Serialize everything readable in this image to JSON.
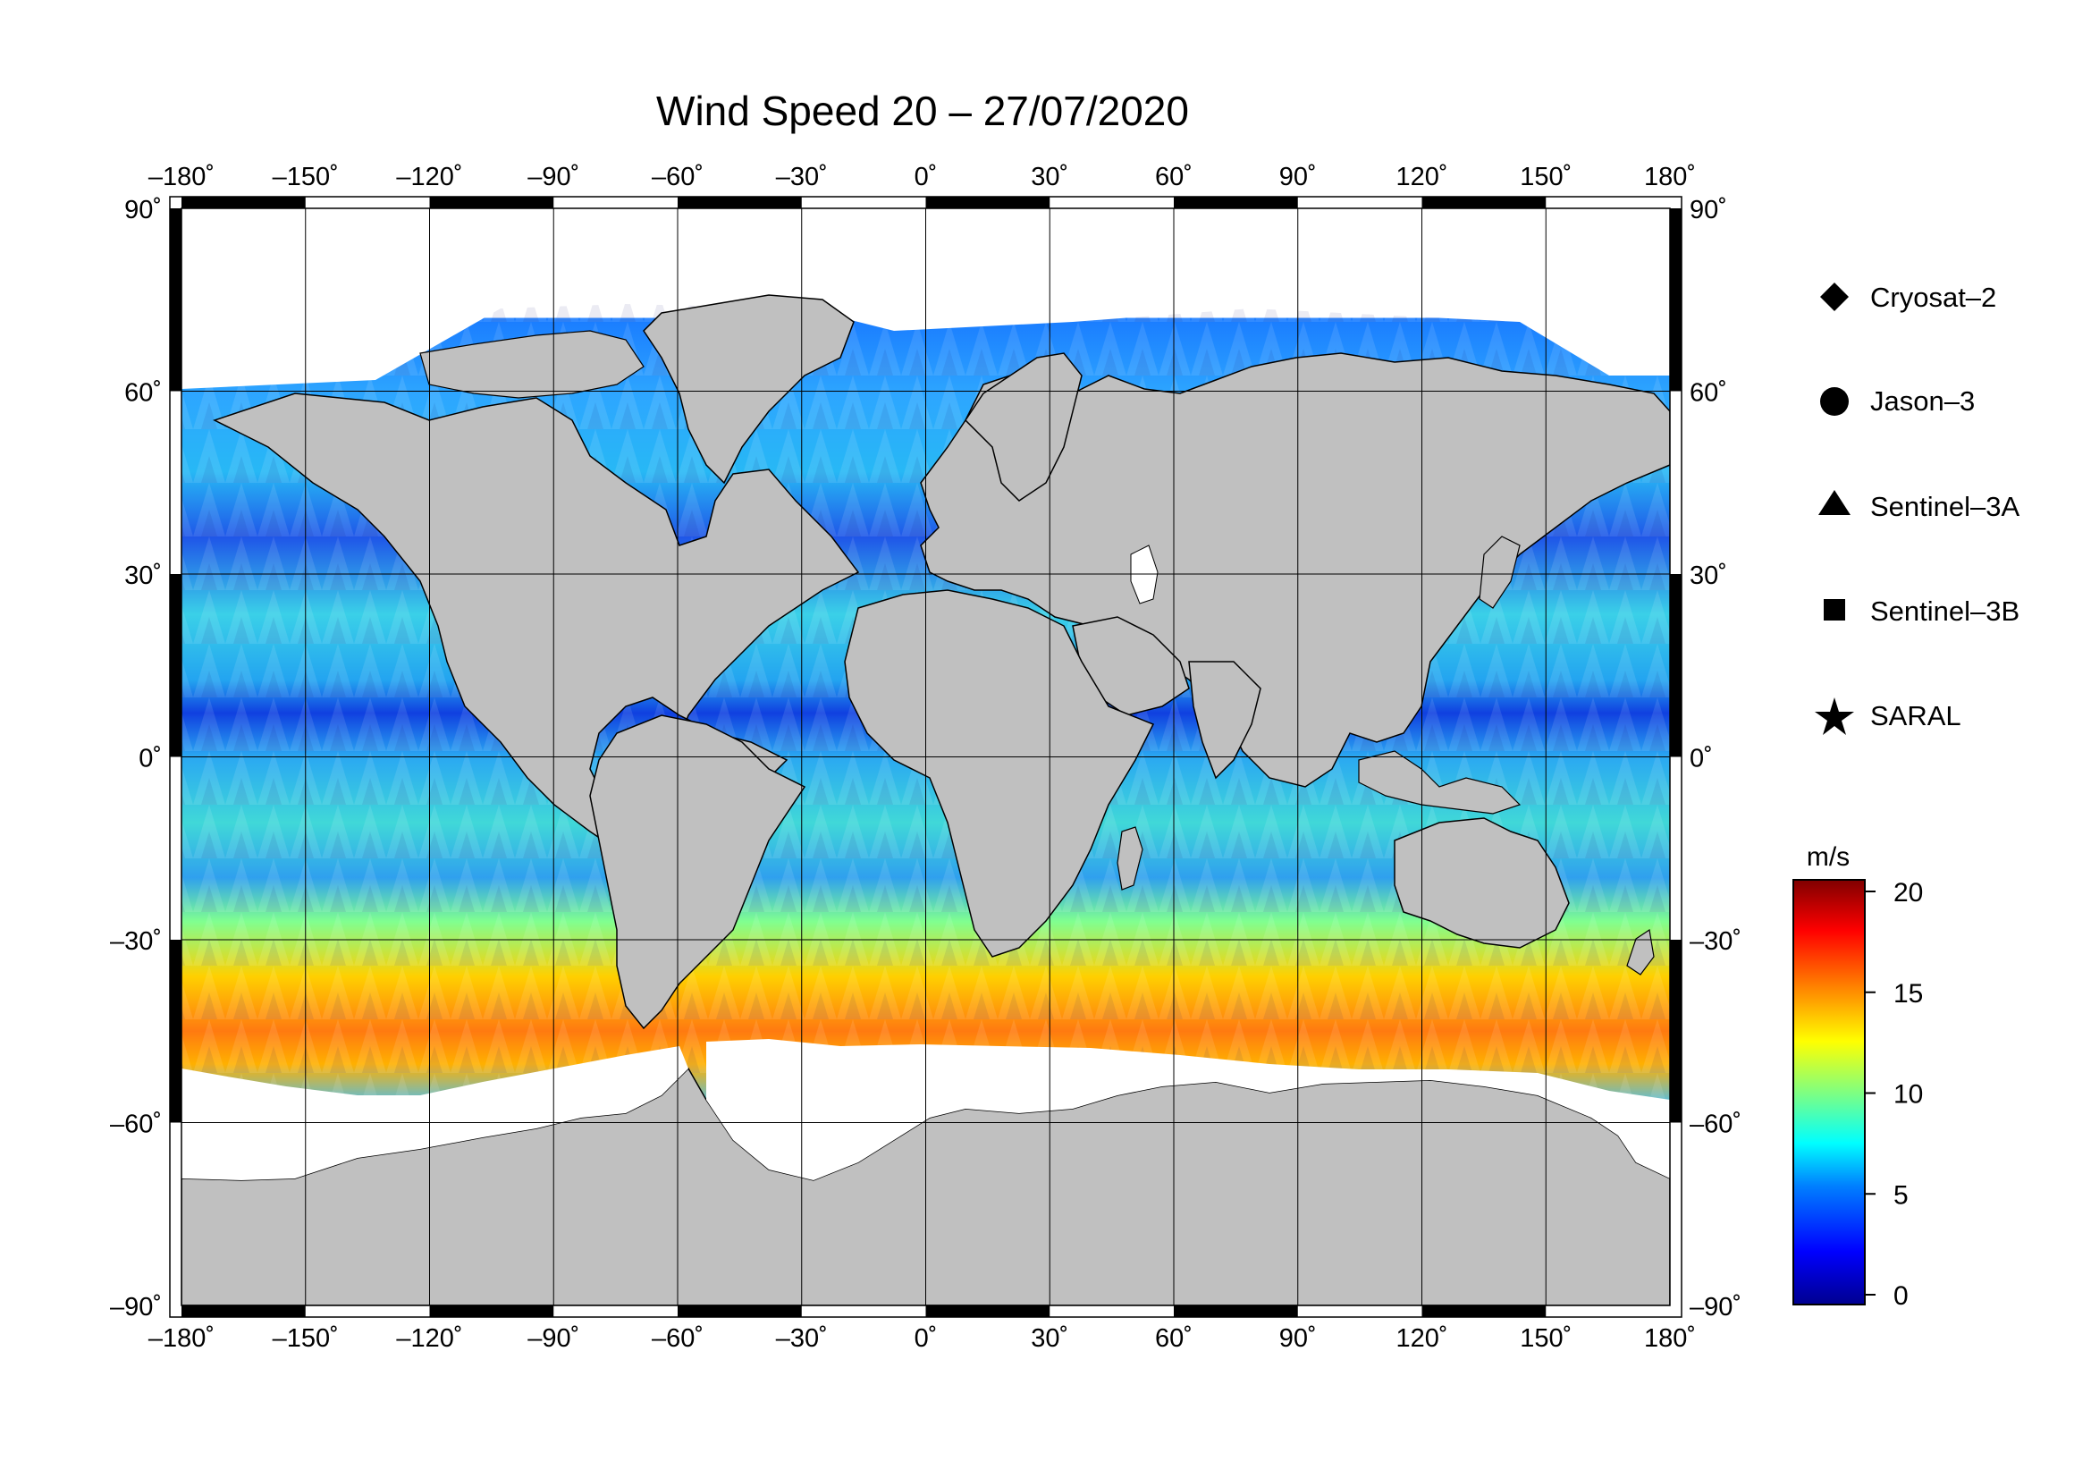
{
  "title": "Wind Speed 20 – 27/07/2020",
  "longitude_ticks": [
    "–180˚",
    "–150˚",
    "–120˚",
    "–90˚",
    "–60˚",
    "–30˚",
    "0˚",
    "30˚",
    "60˚",
    "90˚",
    "120˚",
    "150˚",
    "180˚"
  ],
  "latitude_ticks": [
    "90˚",
    "60˚",
    "30˚",
    "0˚",
    "–30˚",
    "–60˚",
    "–90˚"
  ],
  "legend": {
    "items": [
      {
        "label": "Cryosat–2",
        "marker": "diamond-icon"
      },
      {
        "label": "Jason–3",
        "marker": "circle-icon"
      },
      {
        "label": "Sentinel–3A",
        "marker": "triangle-icon"
      },
      {
        "label": "Sentinel–3B",
        "marker": "square-icon"
      },
      {
        "label": "SARAL",
        "marker": "star-icon"
      }
    ]
  },
  "colorbar": {
    "unit": "m/s",
    "ticks": [
      "20",
      "15",
      "10",
      "5",
      "0"
    ],
    "range": [
      0,
      20
    ],
    "colors": [
      "#00008f",
      "#0000ff",
      "#0080ff",
      "#00ffff",
      "#80ff80",
      "#ffff00",
      "#ff8000",
      "#ff0000",
      "#800000"
    ]
  },
  "colors": {
    "land": "#c0c0c0",
    "ice": "#ffffff",
    "coast": "#000000"
  }
}
